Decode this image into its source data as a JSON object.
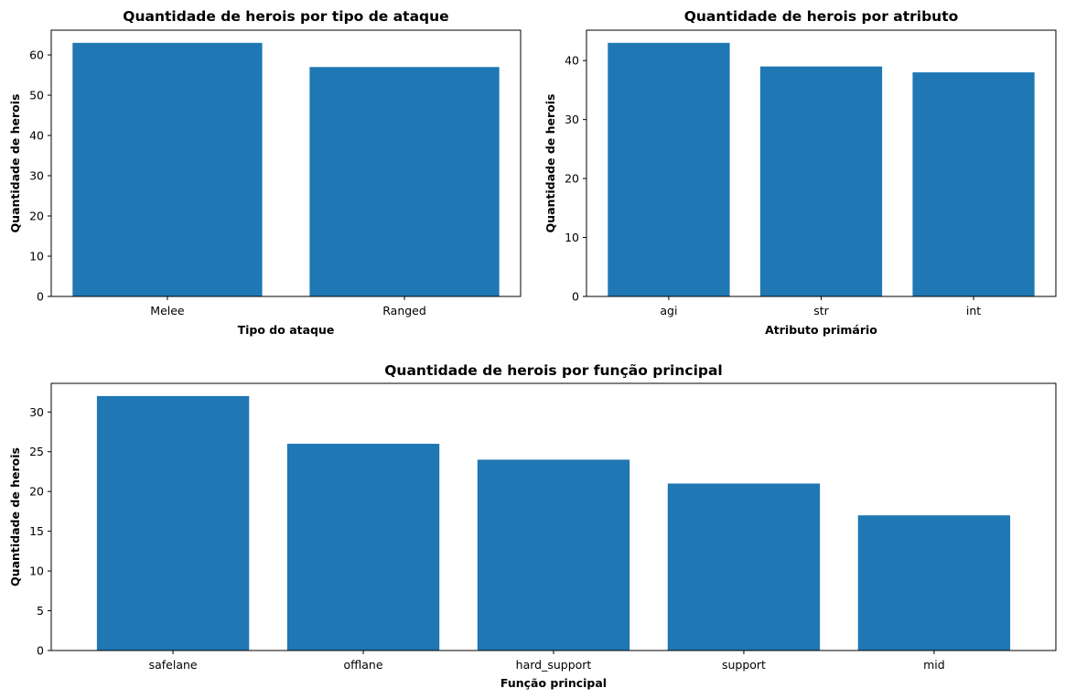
{
  "colors": {
    "bar": "#1f77b4"
  },
  "chart_data": [
    {
      "type": "bar",
      "title": "Quantidade de herois por tipo de ataque",
      "xlabel": "Tipo do ataque",
      "ylabel": "Quantidade de herois",
      "categories": [
        "Melee",
        "Ranged"
      ],
      "values": [
        63,
        57
      ],
      "ylim": [
        0,
        66.15
      ],
      "yticks": [
        0,
        10,
        20,
        30,
        40,
        50,
        60
      ],
      "grid": false
    },
    {
      "type": "bar",
      "title": "Quantidade de herois por atributo",
      "xlabel": "Atributo primário",
      "ylabel": "Quantidade de herois",
      "categories": [
        "agi",
        "str",
        "int"
      ],
      "values": [
        43,
        39,
        38
      ],
      "ylim": [
        0,
        45.15
      ],
      "yticks": [
        0,
        10,
        20,
        30,
        40
      ],
      "grid": false
    },
    {
      "type": "bar",
      "title": "Quantidade de herois por função principal",
      "xlabel": "Função principal",
      "ylabel": "Quantidade de herois",
      "categories": [
        "safelane",
        "offlane",
        "hard_support",
        "support",
        "mid"
      ],
      "values": [
        32,
        26,
        24,
        21,
        17
      ],
      "ylim": [
        0,
        33.6
      ],
      "yticks": [
        0,
        5,
        10,
        15,
        20,
        25,
        30
      ],
      "grid": false
    }
  ]
}
